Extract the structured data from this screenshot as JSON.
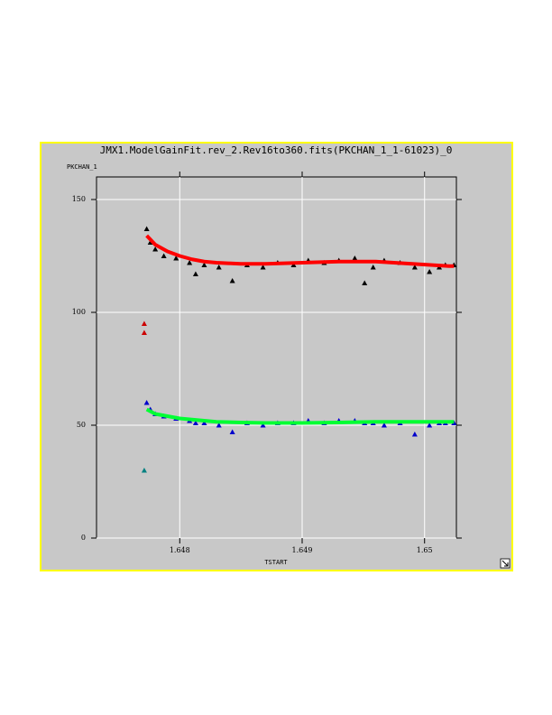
{
  "chart_data": {
    "type": "scatter",
    "title": "JMX1.ModelGainFit.rev_2.Rev16to360.fits(PKCHAN_1_1-61023)_0",
    "ylabel": "PKCHAN_1",
    "xlabel": "TSTART",
    "xlim": [
      1.64732,
      1.65026
    ],
    "ylim": [
      0,
      160
    ],
    "xticks": [
      1.648,
      1.649,
      1.65
    ],
    "yticks": [
      0,
      50,
      100,
      150
    ],
    "grid": true,
    "series": [
      {
        "style": "markers",
        "color": "#000000",
        "x": [
          1.64773,
          1.64776,
          1.6478,
          1.64787,
          1.64797,
          1.64808,
          1.64813,
          1.6482,
          1.64832,
          1.64843,
          1.64855,
          1.64868,
          1.6488,
          1.64893,
          1.64905,
          1.64918,
          1.6493,
          1.64943,
          1.64951,
          1.64958,
          1.64967,
          1.6498,
          1.64992,
          1.65004,
          1.65012,
          1.65017,
          1.65024
        ],
        "values": [
          137,
          131,
          128,
          125,
          124,
          122,
          117,
          121,
          120,
          114,
          121,
          120,
          122,
          121,
          123,
          122,
          123,
          124,
          113,
          120,
          123,
          122,
          120,
          118,
          120,
          121,
          121
        ]
      },
      {
        "style": "markers",
        "color": "#0000cc",
        "x": [
          1.64773,
          1.64776,
          1.6478,
          1.64787,
          1.64797,
          1.64808,
          1.64813,
          1.6482,
          1.64832,
          1.64843,
          1.64855,
          1.64868,
          1.6488,
          1.64893,
          1.64905,
          1.64918,
          1.6493,
          1.64943,
          1.64951,
          1.64958,
          1.64967,
          1.6498,
          1.64992,
          1.65004,
          1.65012,
          1.65017,
          1.65024
        ],
        "values": [
          60,
          57,
          55,
          54,
          53,
          52,
          51,
          51,
          50,
          47,
          51,
          50,
          51,
          51,
          52,
          51,
          52,
          52,
          51,
          51,
          50,
          51,
          46,
          50,
          51,
          51,
          51
        ]
      },
      {
        "style": "markers",
        "color": "#cc0000",
        "x": [
          1.64771,
          1.64771
        ],
        "values": [
          95,
          91
        ]
      },
      {
        "style": "markers",
        "color": "#008080",
        "x": [
          1.64771
        ],
        "values": [
          30
        ]
      },
      {
        "style": "line",
        "color": "#ff0000",
        "x": [
          1.64773,
          1.6478,
          1.6479,
          1.648,
          1.6481,
          1.6482,
          1.6483,
          1.6485,
          1.6487,
          1.649,
          1.6493,
          1.6496,
          1.6499,
          1.6502,
          1.65024
        ],
        "values": [
          134,
          130,
          127,
          125,
          123.5,
          122.5,
          122,
          121.5,
          121.5,
          122,
          122.5,
          122.5,
          121.5,
          120.5,
          120.5
        ]
      },
      {
        "style": "line",
        "color": "#00ff33",
        "x": [
          1.64773,
          1.6478,
          1.6479,
          1.648,
          1.6481,
          1.6482,
          1.6483,
          1.6485,
          1.6487,
          1.649,
          1.6493,
          1.6496,
          1.6499,
          1.6502,
          1.65024
        ],
        "values": [
          57,
          55,
          54,
          53,
          52.5,
          52,
          51.5,
          51.2,
          51,
          51,
          51.2,
          51.5,
          51.5,
          51.5,
          51.5
        ]
      }
    ]
  }
}
